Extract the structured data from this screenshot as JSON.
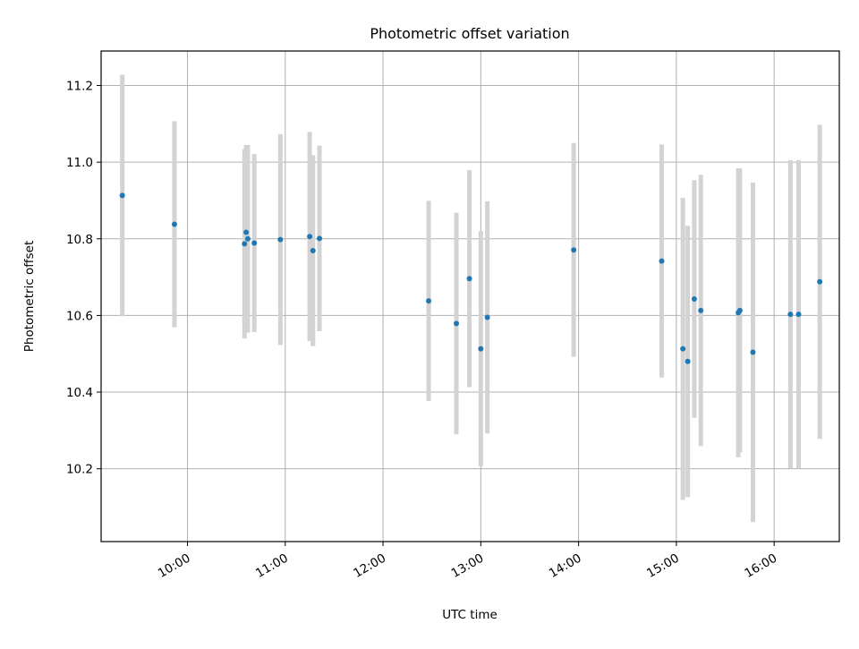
{
  "chart_data": {
    "type": "scatter",
    "title": "Photometric offset variation",
    "xlabel": "UTC time",
    "ylabel": "Photometric offset",
    "x_ticks": [
      "10:00",
      "11:00",
      "12:00",
      "13:00",
      "14:00",
      "15:00",
      "16:00"
    ],
    "y_ticks": [
      "10.2",
      "10.4",
      "10.6",
      "10.8",
      "11.0",
      "11.2"
    ],
    "xlim": [
      "09:07",
      "16:40"
    ],
    "ylim": [
      10.01,
      11.29
    ],
    "grid": true,
    "colors": {
      "point": "#1f77b4",
      "errorbar": "#d3d3d3",
      "grid": "#b0b0b0"
    },
    "points": [
      {
        "x": "09:20",
        "y": 10.913,
        "err": 0.315
      },
      {
        "x": "09:52",
        "y": 10.838,
        "err": 0.269
      },
      {
        "x": "10:35",
        "y": 10.787,
        "err": 0.247
      },
      {
        "x": "10:36",
        "y": 10.817,
        "err": 0.228
      },
      {
        "x": "10:37",
        "y": 10.8,
        "err": 0.245
      },
      {
        "x": "10:41",
        "y": 10.789,
        "err": 0.232
      },
      {
        "x": "10:57",
        "y": 10.798,
        "err": 0.275
      },
      {
        "x": "11:15",
        "y": 10.806,
        "err": 0.273
      },
      {
        "x": "11:17",
        "y": 10.769,
        "err": 0.249
      },
      {
        "x": "11:21",
        "y": 10.801,
        "err": 0.242
      },
      {
        "x": "12:28",
        "y": 10.638,
        "err": 0.261
      },
      {
        "x": "12:45",
        "y": 10.579,
        "err": 0.289
      },
      {
        "x": "12:53",
        "y": 10.696,
        "err": 0.283
      },
      {
        "x": "13:00",
        "y": 10.513,
        "err": 0.307
      },
      {
        "x": "13:04",
        "y": 10.595,
        "err": 0.303
      },
      {
        "x": "13:57",
        "y": 10.771,
        "err": 0.279
      },
      {
        "x": "14:51",
        "y": 10.742,
        "err": 0.304
      },
      {
        "x": "15:04",
        "y": 10.513,
        "err": 0.394
      },
      {
        "x": "15:07",
        "y": 10.48,
        "err": 0.354
      },
      {
        "x": "15:11",
        "y": 10.643,
        "err": 0.31
      },
      {
        "x": "15:15",
        "y": 10.613,
        "err": 0.354
      },
      {
        "x": "15:38",
        "y": 10.607,
        "err": 0.377
      },
      {
        "x": "15:39",
        "y": 10.613,
        "err": 0.37
      },
      {
        "x": "15:47",
        "y": 10.504,
        "err": 0.443
      },
      {
        "x": "16:10",
        "y": 10.603,
        "err": 0.402
      },
      {
        "x": "16:15",
        "y": 10.603,
        "err": 0.402
      },
      {
        "x": "16:28",
        "y": 10.688,
        "err": 0.41
      }
    ]
  }
}
